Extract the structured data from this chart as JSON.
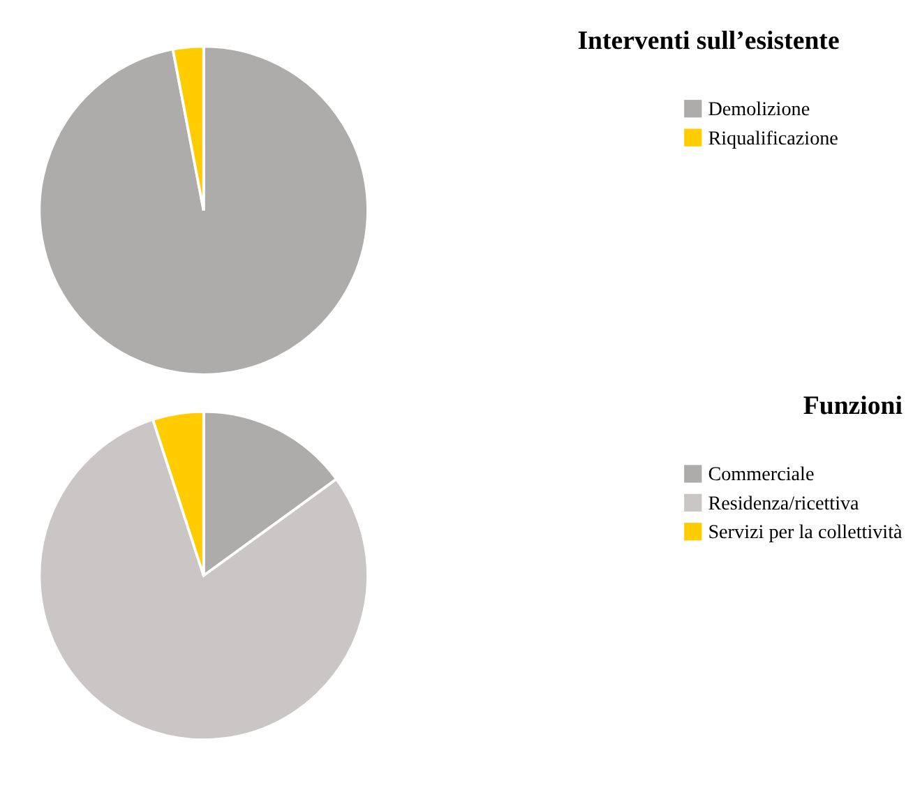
{
  "chart_data": [
    {
      "type": "pie",
      "title": "Interventi sull’esistente",
      "categories": [
        "Demolizione",
        "Riqualificazione"
      ],
      "values": [
        97,
        3
      ],
      "colors": [
        "#adacaa",
        "#ffcc00"
      ],
      "legend": "top right"
    },
    {
      "type": "pie",
      "title": "Funzioni",
      "categories": [
        "Commerciale",
        "Residenza/ricettiva",
        "Servizi per la collettività"
      ],
      "values": [
        15,
        80,
        5
      ],
      "colors": [
        "#adacaa",
        "#c9c6c5",
        "#ffcc00"
      ],
      "legend": "top right"
    }
  ]
}
